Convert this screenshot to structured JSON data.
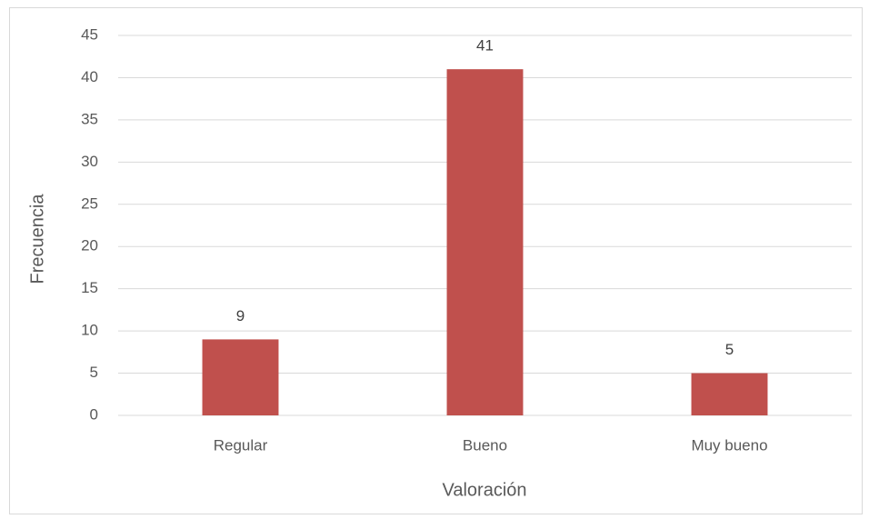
{
  "chart_data": {
    "type": "bar",
    "categories": [
      "Regular",
      "Bueno",
      "Muy bueno"
    ],
    "values": [
      9,
      41,
      5
    ],
    "color": "#c0504d",
    "xlabel": "Valoración",
    "ylabel": "Frecuencia",
    "ylim": [
      0,
      45
    ],
    "yticks": [
      0,
      5,
      10,
      15,
      20,
      25,
      30,
      35,
      40,
      45
    ],
    "grid": true,
    "data_labels": true
  }
}
